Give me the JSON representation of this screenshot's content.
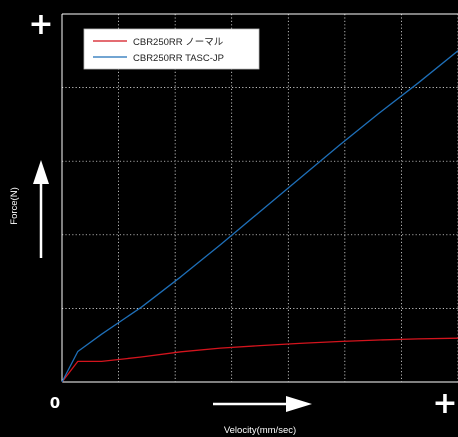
{
  "chart_data": {
    "type": "line",
    "xlabel": "Velocity(mm/sec)",
    "ylabel": "Force(N)",
    "x": [
      0,
      0.04,
      0.1,
      0.2,
      0.3,
      0.4,
      0.5,
      0.6,
      0.7,
      0.8,
      0.9,
      1.0
    ],
    "xlim": [
      0,
      1
    ],
    "ylim": [
      0,
      1
    ],
    "grid": true,
    "legend": "top-left",
    "origin_label": "0",
    "max_marker": "+",
    "series": [
      {
        "name": "CBR250RR ノーマル",
        "color": "#d4141d",
        "values": [
          0,
          0.056,
          0.056,
          0.068,
          0.082,
          0.092,
          0.099,
          0.105,
          0.11,
          0.114,
          0.117,
          0.119
        ]
      },
      {
        "name": "CBR250RR TASC-JP",
        "color": "#1e6fb8",
        "values": [
          0,
          0.083,
          0.13,
          0.203,
          0.286,
          0.373,
          0.463,
          0.553,
          0.643,
          0.73,
          0.813,
          0.9
        ]
      }
    ]
  }
}
